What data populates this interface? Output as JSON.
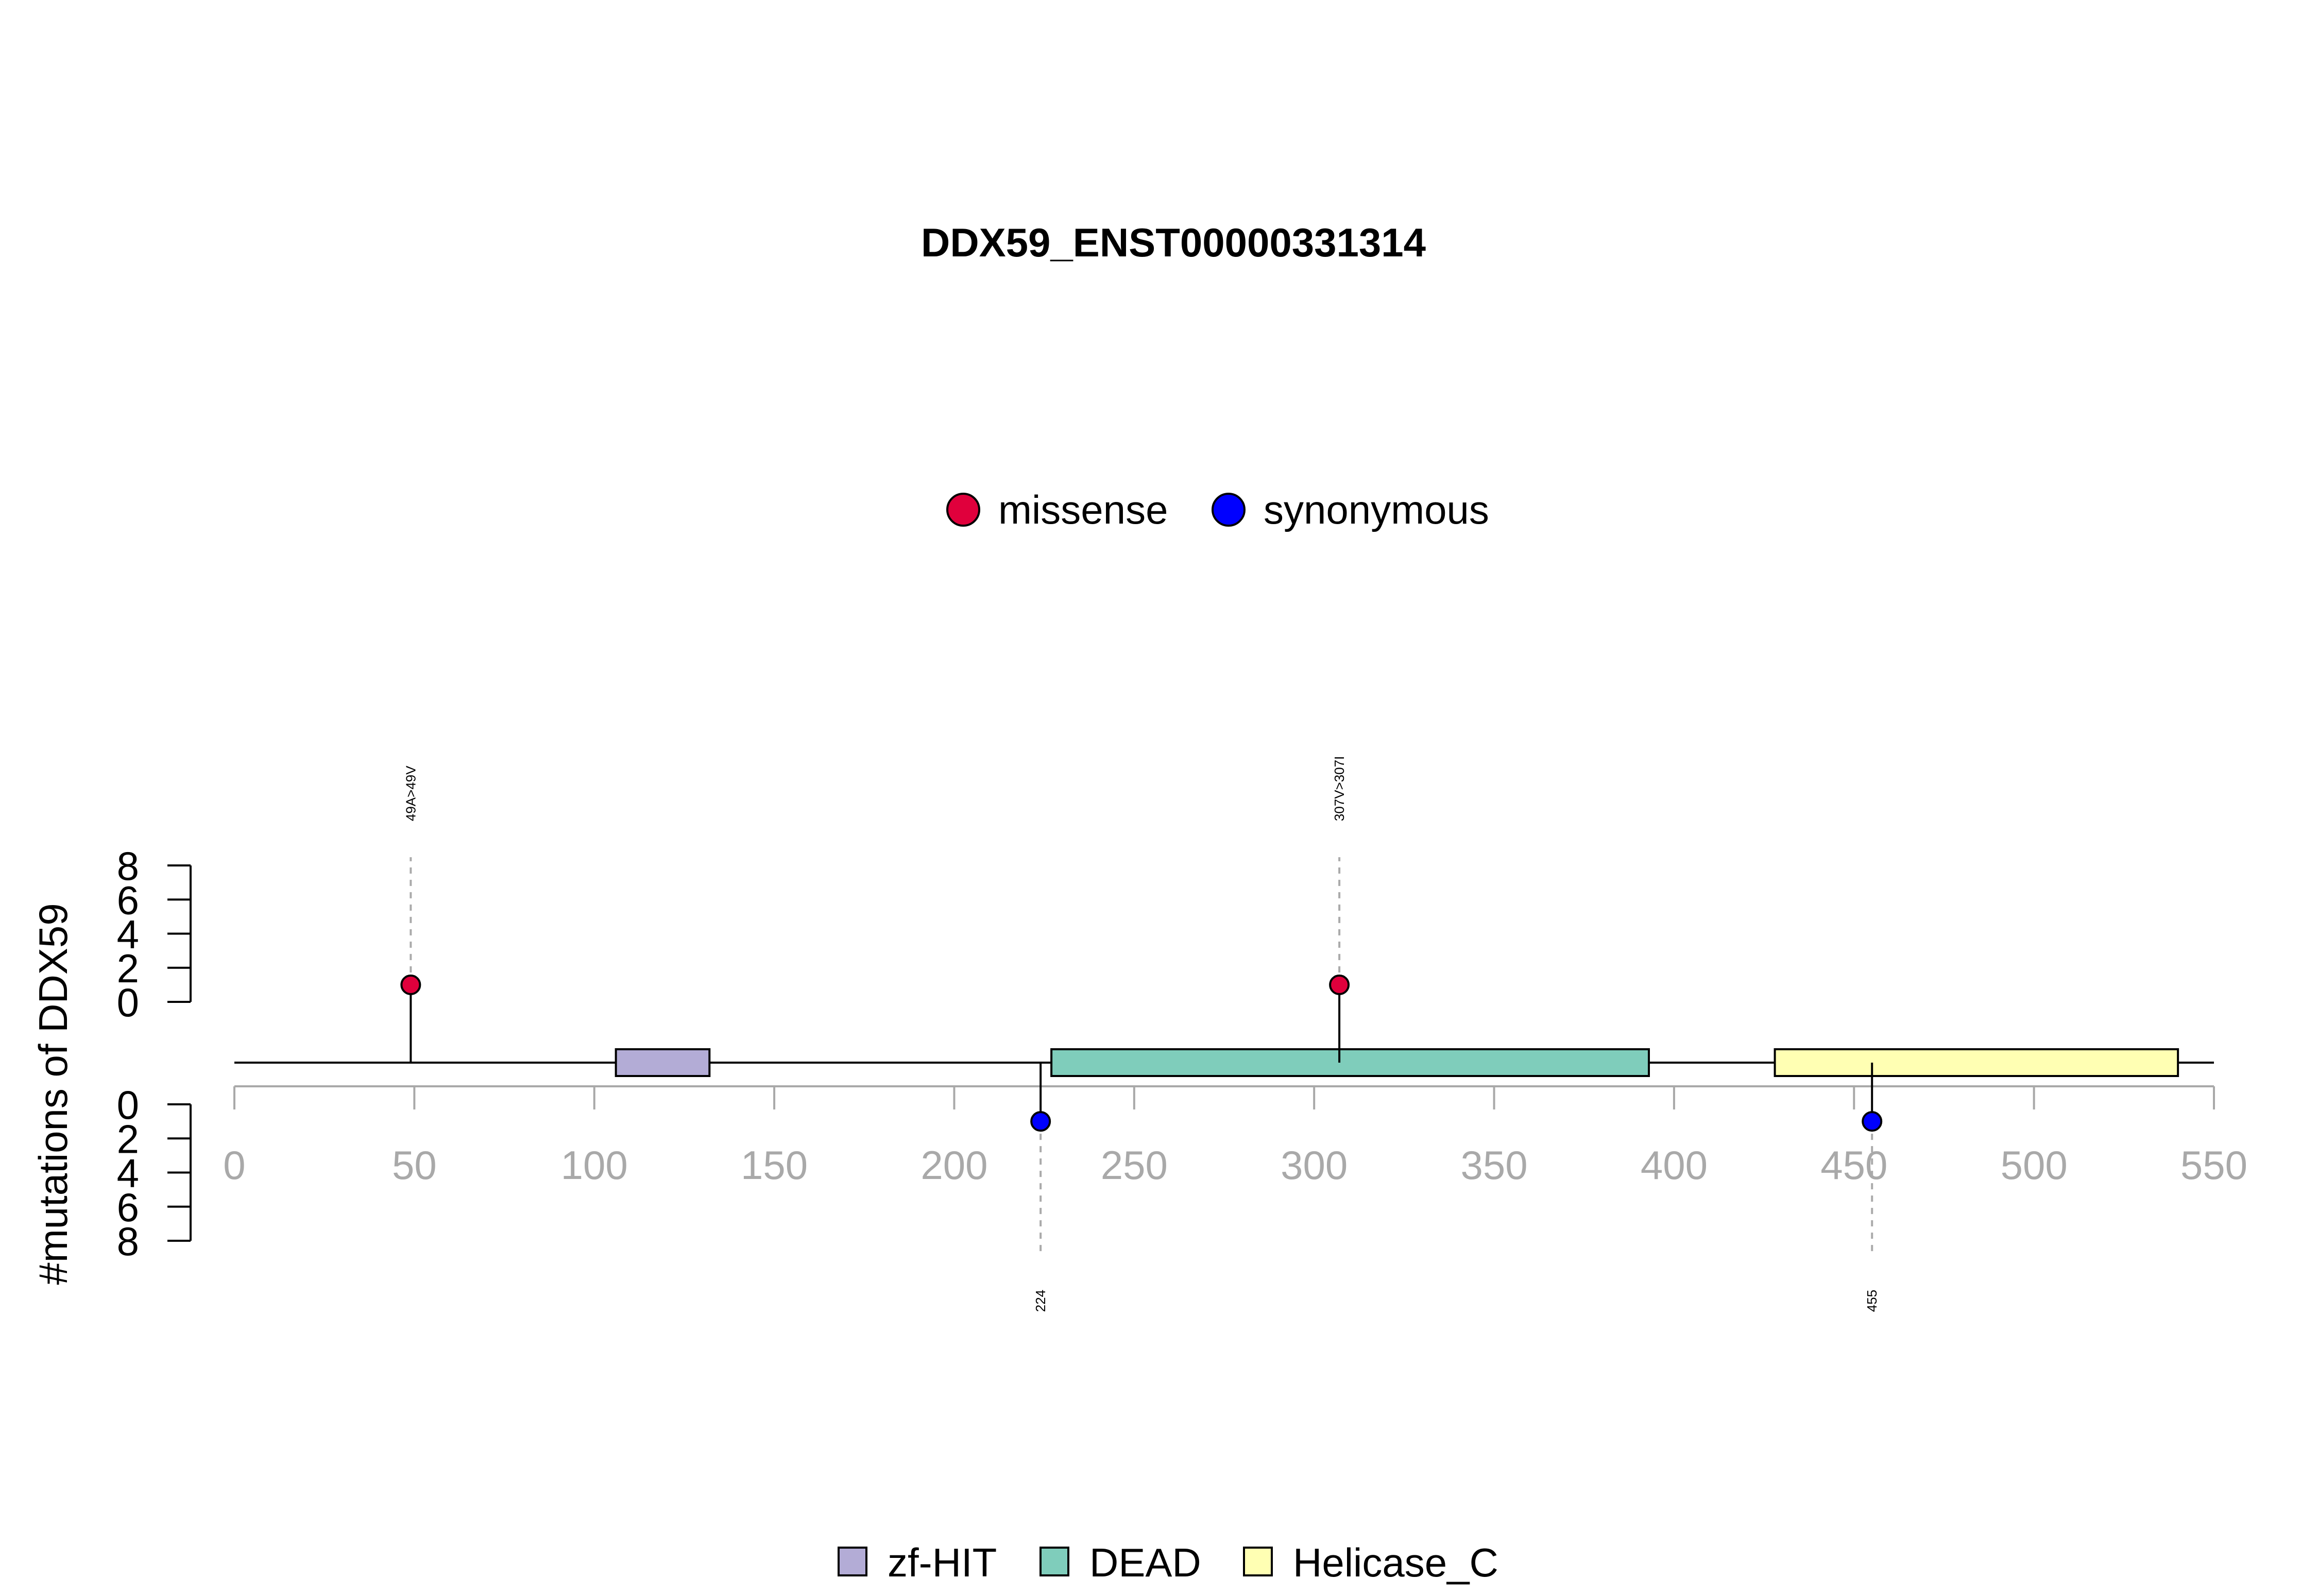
{
  "chart_data": {
    "type": "lollipop",
    "title": "DDX59_ENST00000331314",
    "ylabel": "#mutations of DDX59",
    "protein_length": 550,
    "xlim": [
      0,
      550
    ],
    "x_ticks": [
      0,
      50,
      100,
      150,
      200,
      250,
      300,
      350,
      400,
      450,
      500,
      550
    ],
    "y_ticks": [
      0,
      2,
      4,
      6,
      8
    ],
    "ylim": [
      0,
      8
    ],
    "mutation_legend": [
      {
        "name": "missense",
        "color": "#e0003c"
      },
      {
        "name": "synonymous",
        "color": "#0000ff"
      }
    ],
    "domain_legend": [
      {
        "name": "zf-HIT",
        "color": "#b3acd6"
      },
      {
        "name": "DEAD",
        "color": "#7fcdbb"
      },
      {
        "name": "Helicase_C",
        "color": "#ffffb3"
      }
    ],
    "domains": [
      {
        "name": "zf-HIT",
        "start": 106,
        "end": 132,
        "color": "#b3acd6"
      },
      {
        "name": "DEAD",
        "start": 227,
        "end": 393,
        "color": "#7fcdbb"
      },
      {
        "name": "Helicase_C",
        "start": 428,
        "end": 540,
        "color": "#ffffb3"
      }
    ],
    "mutations": [
      {
        "position": 49,
        "count": 1,
        "type": "missense",
        "side": "top",
        "label": "49A>49V"
      },
      {
        "position": 307,
        "count": 1,
        "type": "missense",
        "side": "top",
        "label": "307V>307I"
      },
      {
        "position": 224,
        "count": 1,
        "type": "synonymous",
        "side": "bottom",
        "label": "224"
      },
      {
        "position": 455,
        "count": 1,
        "type": "synonymous",
        "side": "bottom",
        "label": "455"
      }
    ]
  }
}
